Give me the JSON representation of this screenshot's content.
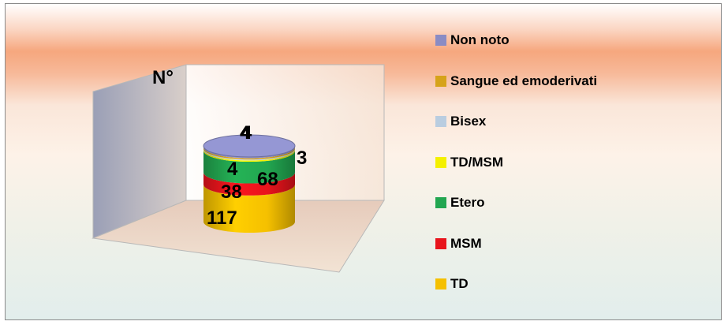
{
  "chart_data": {
    "type": "bar",
    "variant": "3d-stacked-cylinder",
    "ylabel": "N°",
    "series": [
      {
        "name": "TD",
        "value": 117,
        "color": "#f5c000"
      },
      {
        "name": "MSM",
        "value": 38,
        "color": "#e8141c"
      },
      {
        "name": "Etero",
        "value": 68,
        "color": "#22a650"
      },
      {
        "name": "TD/MSM",
        "value": 4,
        "color": "#f4f000"
      },
      {
        "name": "Bisex",
        "value": 3,
        "color": "#b9cde0"
      },
      {
        "name": "Sangue ed emoderivati",
        "value": 4,
        "color": "#d6a31a"
      },
      {
        "name": "Non noto",
        "value": 4,
        "color": "#8a8cc4"
      }
    ],
    "legend_order": [
      "Non noto",
      "Sangue ed emoderivati",
      "Bisex",
      "TD/MSM",
      "Etero",
      "MSM",
      "TD"
    ],
    "legend_position": "right",
    "grid": false
  }
}
